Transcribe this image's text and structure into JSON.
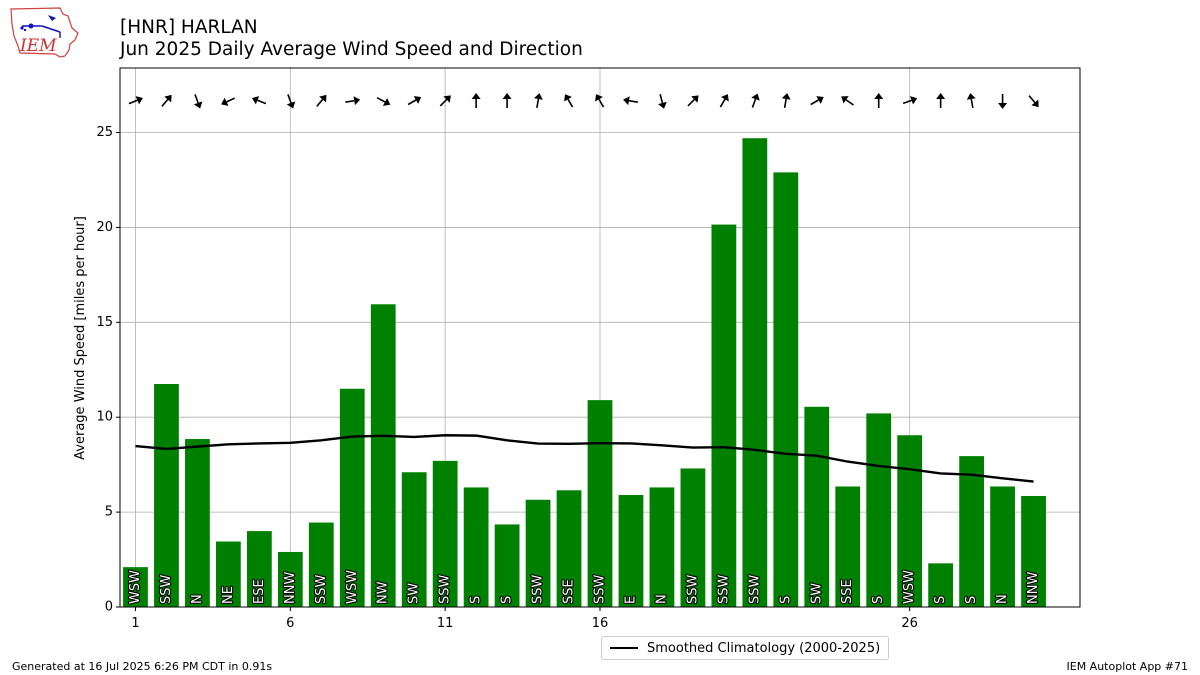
{
  "header": {
    "station": "[HNR] HARLAN",
    "subtitle": "Jun 2025 Daily Average Wind Speed and Direction",
    "logo_text": "IEM"
  },
  "footer": {
    "generated": "Generated at 16 Jul 2025 6:26 PM CDT in 0.91s",
    "app": "IEM Autoplot App #71"
  },
  "legend": {
    "label": "Smoothed Climatology (2000-2025)"
  },
  "colors": {
    "bar": "#008000",
    "line": "#000000",
    "grid": "#b0b0b0"
  },
  "chart_data": {
    "type": "bar",
    "ylabel": "Average Wind Speed [miles per hour]",
    "xlim": [
      0.5,
      31.5
    ],
    "ylim": [
      0,
      28.4
    ],
    "xticks": [
      1,
      6,
      11,
      16,
      26
    ],
    "yticks": [
      0,
      5,
      10,
      15,
      20,
      25
    ],
    "grid": true,
    "legend_position": "bottom-center",
    "days": [
      1,
      2,
      3,
      4,
      5,
      6,
      7,
      8,
      9,
      10,
      11,
      12,
      13,
      14,
      15,
      16,
      17,
      18,
      19,
      20,
      21,
      22,
      23,
      24,
      25,
      26,
      27,
      28,
      29,
      30
    ],
    "values": [
      2.1,
      11.75,
      8.85,
      3.45,
      4.0,
      2.9,
      4.45,
      11.5,
      15.95,
      7.1,
      7.7,
      6.3,
      4.35,
      5.65,
      6.15,
      10.9,
      5.9,
      6.3,
      7.3,
      20.15,
      24.7,
      22.9,
      10.55,
      6.35,
      10.2,
      9.05,
      2.3,
      7.95,
      6.35,
      5.85
    ],
    "directions": [
      "WSW",
      "SSW",
      "N",
      "NE",
      "ESE",
      "NNW",
      "SSW",
      "WSW",
      "NW",
      "SW",
      "SSW",
      "S",
      "S",
      "SSW",
      "SSE",
      "SSW",
      "E",
      "N",
      "SSW",
      "SSW",
      "SSW",
      "S",
      "SW",
      "SSE",
      "S",
      "WSW",
      "S",
      "S",
      "N",
      "NNW"
    ],
    "arrow_angles": [
      68,
      40,
      160,
      245,
      292,
      160,
      40,
      80,
      118,
      60,
      45,
      0,
      0,
      10,
      330,
      330,
      280,
      165,
      45,
      30,
      20,
      10,
      60,
      305,
      0,
      70,
      0,
      350,
      180,
      140
    ],
    "climatology": {
      "name": "Smoothed Climatology (2000-2025)",
      "values": [
        8.48,
        8.33,
        8.45,
        8.57,
        8.62,
        8.65,
        8.78,
        8.98,
        9.02,
        8.96,
        9.05,
        9.03,
        8.78,
        8.61,
        8.6,
        8.63,
        8.62,
        8.52,
        8.4,
        8.42,
        8.28,
        8.07,
        7.97,
        7.66,
        7.43,
        7.26,
        7.04,
        6.97,
        6.78,
        6.61
      ]
    }
  }
}
